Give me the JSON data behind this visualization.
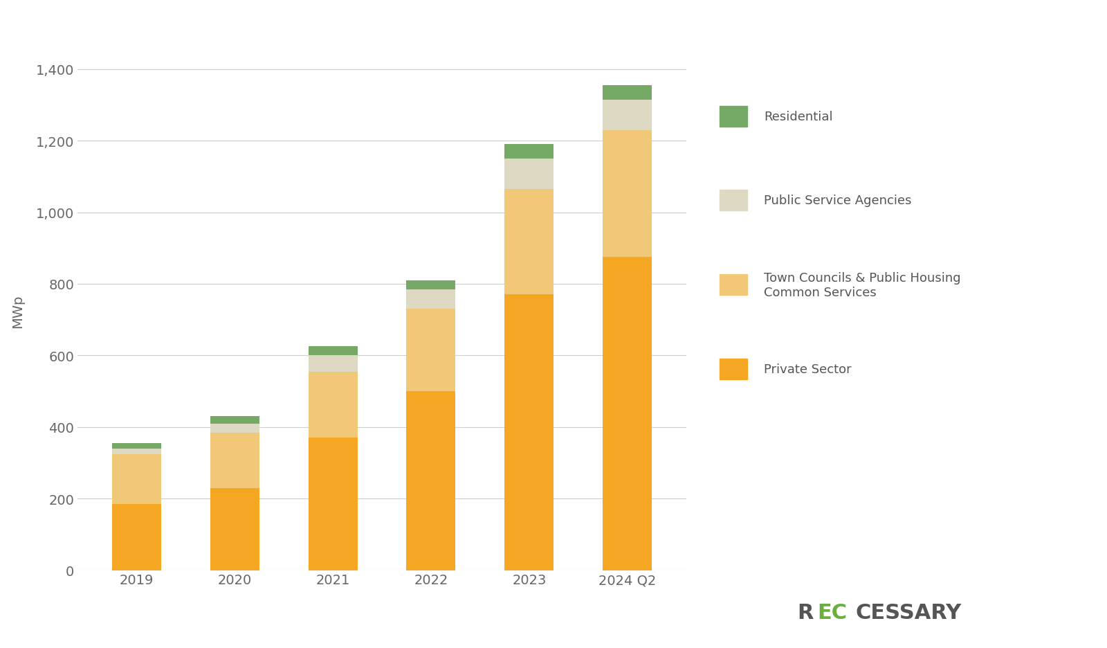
{
  "categories": [
    "2019",
    "2020",
    "2021",
    "2022",
    "2023",
    "2024 Q2"
  ],
  "private_sector": [
    185,
    230,
    370,
    500,
    770,
    875
  ],
  "town_councils": [
    140,
    155,
    185,
    230,
    295,
    355
  ],
  "public_service": [
    15,
    25,
    45,
    55,
    85,
    85
  ],
  "residential": [
    15,
    20,
    25,
    25,
    40,
    40
  ],
  "colors": {
    "private_sector": "#F5A623",
    "town_councils": "#F0C878",
    "public_service": "#DDD9C3",
    "residential": "#76A965"
  },
  "legend_labels": {
    "residential": "Residential",
    "public_service": "Public Service Agencies",
    "town_councils": "Town Councils & Public Housing\nCommon Services",
    "private_sector": "Private Sector"
  },
  "ylabel": "MWp",
  "ylim": [
    0,
    1450
  ],
  "yticks": [
    0,
    200,
    400,
    600,
    800,
    1000,
    1200,
    1400
  ],
  "background_color": "#FFFFFF",
  "watermark_color_dark": "#555555",
  "watermark_color_green": "#6AAF3D",
  "grid_color": "#CCCCCC",
  "tick_color": "#666666",
  "bar_width": 0.5
}
